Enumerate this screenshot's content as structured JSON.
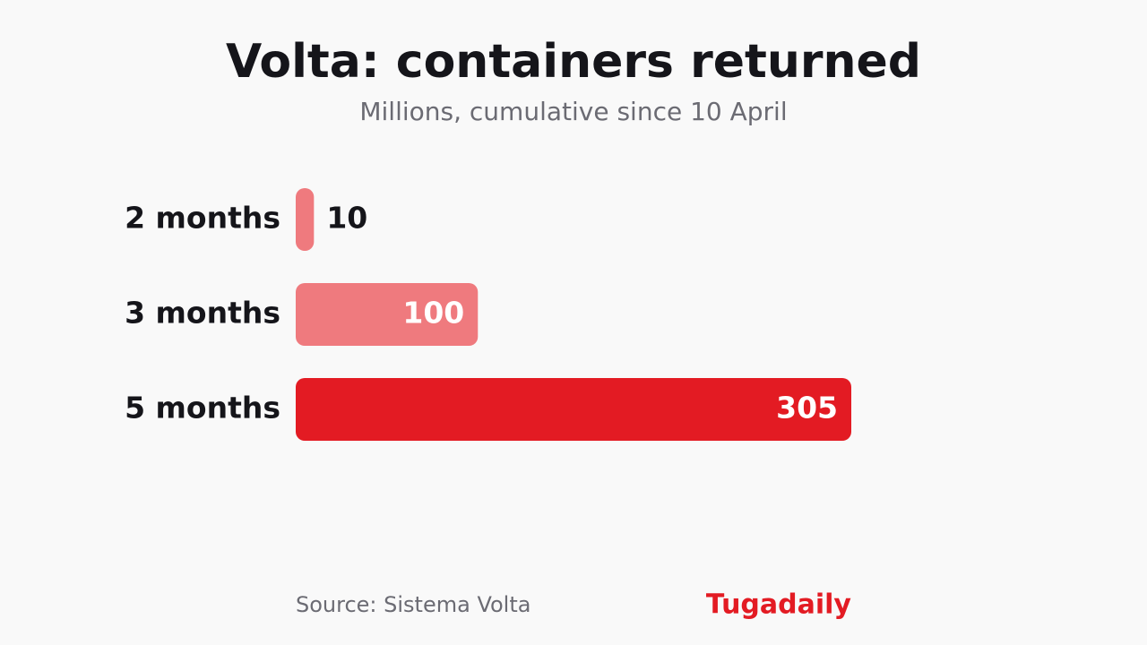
{
  "chart_data": {
    "type": "bar",
    "orientation": "horizontal",
    "title": "Volta: containers returned",
    "subtitle": "Millions, cumulative since 10 April",
    "categories": [
      "2 months",
      "3 months",
      "5 months"
    ],
    "values": [
      10,
      100,
      305
    ],
    "colors": [
      "#ef7a7e",
      "#ef7a7e",
      "#e31b23"
    ],
    "source": "Source: Sistema Volta",
    "brand": "Tugadaily"
  }
}
